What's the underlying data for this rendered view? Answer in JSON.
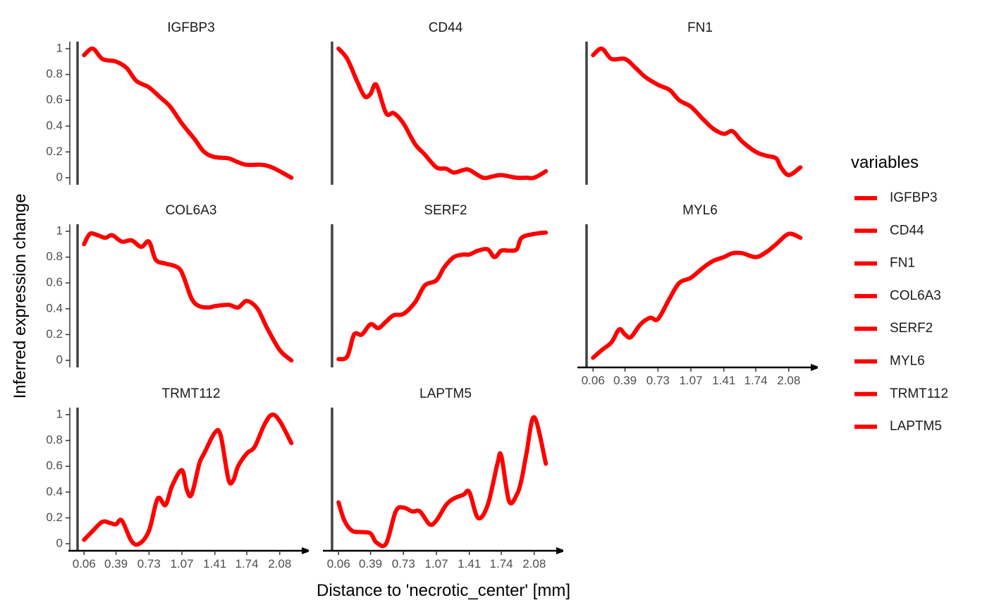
{
  "chart_data": {
    "type": "line",
    "layout": "facet-wrap 3 columns",
    "xlabel": "Distance to 'necrotic_center' [mm]",
    "ylabel": "Inferred expression change",
    "xlim": [
      0,
      2.3
    ],
    "ylim": [
      0,
      1
    ],
    "x_ticks": [
      "0.06",
      "0.39",
      "0.73",
      "1.07",
      "1.41",
      "1.74",
      "2.08"
    ],
    "y_ticks": [
      "0",
      "0.2",
      "0.4",
      "0.6",
      "0.8",
      "1"
    ],
    "line_color": "#ff0000",
    "legend": {
      "title": "variables",
      "placement": "right",
      "entries": [
        "IGFBP3",
        "CD44",
        "FN1",
        "COL6A3",
        "SERF2",
        "MYL6",
        "TRMT112",
        "LAPTM5"
      ]
    },
    "series": [
      {
        "name": "IGFBP3",
        "x": [
          0.06,
          0.15,
          0.25,
          0.39,
          0.5,
          0.6,
          0.73,
          0.85,
          0.95,
          1.07,
          1.2,
          1.3,
          1.41,
          1.55,
          1.65,
          1.74,
          1.9,
          2.0,
          2.08,
          2.2
        ],
        "values": [
          0.95,
          1.0,
          0.92,
          0.9,
          0.85,
          0.75,
          0.7,
          0.62,
          0.55,
          0.42,
          0.3,
          0.2,
          0.16,
          0.15,
          0.12,
          0.1,
          0.1,
          0.08,
          0.05,
          0.0
        ]
      },
      {
        "name": "CD44",
        "x": [
          0.06,
          0.15,
          0.25,
          0.33,
          0.39,
          0.45,
          0.55,
          0.63,
          0.73,
          0.85,
          0.95,
          1.07,
          1.17,
          1.25,
          1.35,
          1.41,
          1.55,
          1.65,
          1.74,
          1.9,
          2.0,
          2.08,
          2.2
        ],
        "values": [
          1.0,
          0.92,
          0.75,
          0.63,
          0.65,
          0.72,
          0.5,
          0.5,
          0.42,
          0.26,
          0.18,
          0.08,
          0.07,
          0.04,
          0.06,
          0.06,
          0.0,
          0.01,
          0.02,
          0.0,
          0.0,
          0.0,
          0.05
        ]
      },
      {
        "name": "FN1",
        "x": [
          0.06,
          0.15,
          0.25,
          0.39,
          0.5,
          0.6,
          0.73,
          0.85,
          0.95,
          1.07,
          1.2,
          1.3,
          1.41,
          1.5,
          1.6,
          1.74,
          1.85,
          1.95,
          2.0,
          2.08,
          2.2
        ],
        "values": [
          0.95,
          1.0,
          0.92,
          0.92,
          0.85,
          0.78,
          0.72,
          0.68,
          0.6,
          0.55,
          0.45,
          0.38,
          0.34,
          0.36,
          0.28,
          0.2,
          0.17,
          0.15,
          0.08,
          0.02,
          0.08
        ]
      },
      {
        "name": "COL6A3",
        "x": [
          0.06,
          0.12,
          0.2,
          0.28,
          0.35,
          0.45,
          0.55,
          0.65,
          0.73,
          0.8,
          0.9,
          1.0,
          1.07,
          1.17,
          1.25,
          1.35,
          1.41,
          1.55,
          1.65,
          1.74,
          1.85,
          1.95,
          2.08,
          2.2
        ],
        "values": [
          0.9,
          0.98,
          0.97,
          0.95,
          0.97,
          0.92,
          0.93,
          0.88,
          0.92,
          0.78,
          0.75,
          0.73,
          0.68,
          0.48,
          0.42,
          0.41,
          0.42,
          0.43,
          0.41,
          0.46,
          0.4,
          0.25,
          0.08,
          0.0
        ]
      },
      {
        "name": "SERF2",
        "x": [
          0.06,
          0.15,
          0.22,
          0.3,
          0.39,
          0.47,
          0.55,
          0.63,
          0.73,
          0.85,
          0.95,
          1.07,
          1.15,
          1.25,
          1.35,
          1.41,
          1.5,
          1.6,
          1.67,
          1.74,
          1.82,
          1.9,
          1.95,
          2.08,
          2.2
        ],
        "values": [
          0.01,
          0.03,
          0.2,
          0.2,
          0.28,
          0.25,
          0.3,
          0.35,
          0.36,
          0.45,
          0.58,
          0.62,
          0.72,
          0.8,
          0.82,
          0.82,
          0.85,
          0.86,
          0.8,
          0.85,
          0.85,
          0.86,
          0.95,
          0.98,
          0.99
        ]
      },
      {
        "name": "MYL6",
        "x": [
          0.06,
          0.15,
          0.25,
          0.33,
          0.39,
          0.45,
          0.55,
          0.65,
          0.73,
          0.85,
          0.95,
          1.07,
          1.2,
          1.3,
          1.41,
          1.5,
          1.6,
          1.74,
          1.85,
          1.95,
          2.08,
          2.2
        ],
        "values": [
          0.02,
          0.08,
          0.14,
          0.24,
          0.2,
          0.18,
          0.28,
          0.33,
          0.32,
          0.48,
          0.6,
          0.64,
          0.72,
          0.77,
          0.8,
          0.83,
          0.83,
          0.8,
          0.84,
          0.9,
          0.98,
          0.95
        ]
      },
      {
        "name": "TRMT112",
        "x": [
          0.06,
          0.15,
          0.25,
          0.33,
          0.39,
          0.45,
          0.55,
          0.63,
          0.73,
          0.82,
          0.9,
          0.97,
          1.07,
          1.12,
          1.17,
          1.25,
          1.3,
          1.41,
          1.47,
          1.55,
          1.6,
          1.65,
          1.74,
          1.82,
          1.92,
          2.0,
          2.08,
          2.2
        ],
        "values": [
          0.03,
          0.1,
          0.17,
          0.16,
          0.15,
          0.18,
          0.02,
          0.0,
          0.1,
          0.35,
          0.3,
          0.45,
          0.57,
          0.42,
          0.38,
          0.62,
          0.7,
          0.86,
          0.84,
          0.5,
          0.49,
          0.6,
          0.7,
          0.75,
          0.92,
          1.0,
          0.95,
          0.78
        ]
      },
      {
        "name": "LAPTM5",
        "x": [
          0.06,
          0.12,
          0.2,
          0.3,
          0.39,
          0.45,
          0.55,
          0.65,
          0.73,
          0.82,
          0.9,
          1.0,
          1.07,
          1.17,
          1.25,
          1.35,
          1.41,
          1.5,
          1.6,
          1.7,
          1.74,
          1.82,
          1.9,
          1.95,
          2.0,
          2.08,
          2.2
        ],
        "values": [
          0.32,
          0.18,
          0.1,
          0.09,
          0.08,
          0.01,
          0.0,
          0.25,
          0.28,
          0.25,
          0.25,
          0.15,
          0.18,
          0.3,
          0.35,
          0.38,
          0.4,
          0.2,
          0.3,
          0.62,
          0.68,
          0.33,
          0.38,
          0.5,
          0.7,
          0.98,
          0.62
        ]
      }
    ]
  }
}
